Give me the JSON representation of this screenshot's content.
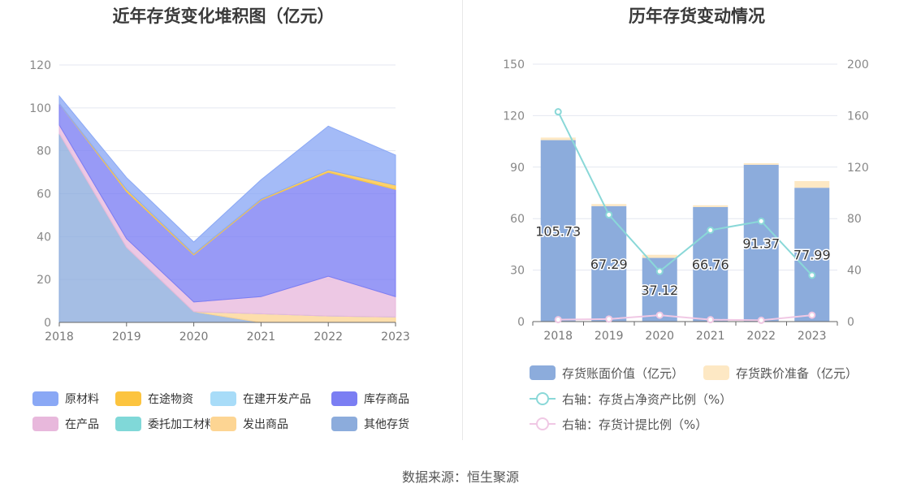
{
  "left": {
    "title": "近年存货变化堆积图（亿元）",
    "legend": [
      {
        "key": "raw",
        "label": "原材料",
        "color": "#8aa8f5"
      },
      {
        "key": "transit",
        "label": "在途物资",
        "color": "#fcc43f"
      },
      {
        "key": "dev",
        "label": "在建开发产品",
        "color": "#a8dcf8"
      },
      {
        "key": "stock",
        "label": "库存商品",
        "color": "#7b7ef3"
      },
      {
        "key": "wip",
        "label": "在产品",
        "color": "#e8b8dc"
      },
      {
        "key": "consign",
        "label": "委托加工材料",
        "color": "#80d8d8"
      },
      {
        "key": "shipped",
        "label": "发出商品",
        "color": "#fdd593"
      },
      {
        "key": "other",
        "label": "其他存货",
        "color": "#8cacdc"
      }
    ]
  },
  "right": {
    "title": "历年存货变动情况",
    "legend": [
      {
        "label": "存货账面价值（亿元）",
        "color": "#8cacdc",
        "kind": "box"
      },
      {
        "label": "存货跌价准备（亿元）",
        "color": "#fde8c4",
        "kind": "box"
      },
      {
        "label": "右轴：存货占净资产比例（%）",
        "color": "#8ad8d8",
        "kind": "line"
      },
      {
        "label": "右轴：存货计提比例（%）",
        "color": "#f0c8e4",
        "kind": "line"
      }
    ]
  },
  "source": "数据来源：恒生聚源",
  "chart_data": [
    {
      "type": "area",
      "stacked": true,
      "title": "近年存货变化堆积图（亿元）",
      "x": [
        "2018",
        "2019",
        "2020",
        "2021",
        "2022",
        "2023"
      ],
      "ylim": [
        0,
        120
      ],
      "yticks": [
        0,
        20,
        40,
        60,
        80,
        100,
        120
      ],
      "grid": true,
      "legend_position": "bottom",
      "series": [
        {
          "key": "other",
          "name": "其他存货",
          "values": [
            88,
            35,
            5,
            0,
            0,
            0
          ]
        },
        {
          "key": "shipped",
          "name": "发出商品",
          "values": [
            0,
            0,
            0,
            4,
            3,
            2.5
          ]
        },
        {
          "key": "consign",
          "name": "委托加工材料",
          "values": [
            0,
            0,
            0,
            0,
            0,
            0
          ]
        },
        {
          "key": "wip",
          "name": "在产品",
          "values": [
            4,
            4,
            4.5,
            8,
            18.5,
            9.5
          ]
        },
        {
          "key": "stock",
          "name": "库存商品",
          "values": [
            10,
            22,
            22,
            45,
            48.5,
            50
          ]
        },
        {
          "key": "dev",
          "name": "在建开发产品",
          "values": [
            0,
            0,
            0,
            0,
            0,
            0
          ]
        },
        {
          "key": "transit",
          "name": "在途物资",
          "values": [
            0,
            1,
            0.5,
            0.5,
            1,
            2
          ]
        },
        {
          "key": "raw",
          "name": "原材料",
          "values": [
            3.5,
            5.5,
            5.5,
            9,
            20.5,
            14
          ]
        }
      ]
    },
    {
      "type": "bar",
      "stacked": true,
      "title": "历年存货变动情况",
      "categories": [
        "2018",
        "2019",
        "2020",
        "2021",
        "2022",
        "2023"
      ],
      "ylim": [
        0,
        150
      ],
      "yticks": [
        0,
        30,
        60,
        90,
        120,
        150
      ],
      "y2lim": [
        0,
        200
      ],
      "y2ticks": [
        0,
        40,
        80,
        120,
        160,
        200
      ],
      "grid": true,
      "legend_position": "bottom",
      "series": [
        {
          "name": "存货账面价值（亿元）",
          "values": [
            105.73,
            67.29,
            37.12,
            66.76,
            91.37,
            77.99
          ],
          "labels": [
            "105.73",
            "67.29",
            "37.12",
            "66.76",
            "91.37",
            "77.99"
          ]
        },
        {
          "name": "存货跌价准备（亿元）",
          "values": [
            1.5,
            1.2,
            1.8,
            1.0,
            0.9,
            3.9
          ]
        }
      ],
      "lines": [
        {
          "name": "右轴：存货占净资产比例（%）",
          "axis": "right",
          "values": [
            163,
            83,
            39,
            71,
            78,
            36
          ]
        },
        {
          "name": "右轴：存货计提比例（%）",
          "axis": "right",
          "values": [
            1.5,
            2,
            5,
            1.5,
            1,
            5
          ]
        }
      ]
    }
  ]
}
